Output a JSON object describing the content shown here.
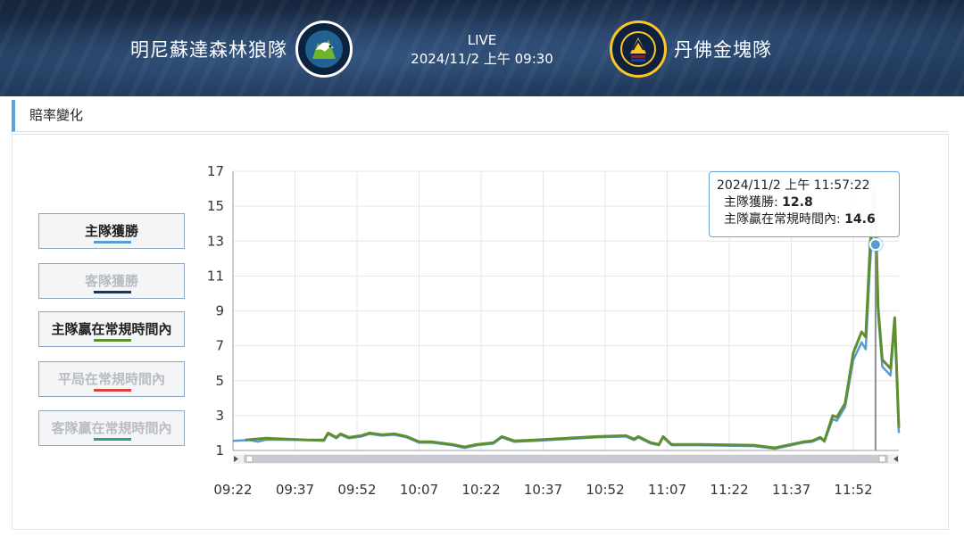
{
  "header": {
    "home_team": "明尼蘇達森林狼隊",
    "away_team": "丹佛金塊隊",
    "status": "LIVE",
    "datetime": "2024/11/2 上午 09:30",
    "home_logo_icon": "timberwolves-logo-icon",
    "away_logo_icon": "nuggets-logo-icon",
    "home_logo_text": "MINNESOTA TIMBERWOLVES",
    "away_logo_text": "DENVER NUGGETS"
  },
  "section": {
    "title": "賠率變化"
  },
  "legend": [
    {
      "label": "主隊獲勝",
      "color": "#5b9bd5",
      "active": true
    },
    {
      "label": "客隊獲勝",
      "color": "#1f3551",
      "active": false
    },
    {
      "label": "主隊贏在常規時間內",
      "color": "#5e8e2e",
      "active": true
    },
    {
      "label": "平局在常規時間內",
      "color": "#e0403a",
      "active": false
    },
    {
      "label": "客隊贏在常規時間內",
      "color": "#2aa08e",
      "active": false
    }
  ],
  "tooltip": {
    "time": "2024/11/2 上午 11:57:22",
    "home_win_label": "主隊獲勝:",
    "home_win_value": "12.8",
    "home_reg_label": "主隊贏在常規時間內:",
    "home_reg_value": "14.6"
  },
  "chart_data": {
    "type": "line",
    "title": "",
    "xlabel": "",
    "ylabel": "",
    "x_ticks": [
      "09:22",
      "09:37",
      "09:52",
      "10:07",
      "10:22",
      "10:37",
      "10:52",
      "11:07",
      "11:22",
      "11:37",
      "11:52"
    ],
    "y_ticks": [
      1,
      3,
      5,
      7,
      9,
      11,
      13,
      15,
      17
    ],
    "x_range": [
      "09:22",
      "12:03"
    ],
    "ylim": [
      1,
      17
    ],
    "grid": true,
    "series": [
      {
        "name": "主隊獲勝",
        "color": "#5b9bd5",
        "points": [
          [
            "09:22",
            1.55
          ],
          [
            "09:26",
            1.6
          ],
          [
            "09:28",
            1.5
          ],
          [
            "09:30",
            1.62
          ],
          [
            "09:40",
            1.6
          ],
          [
            "09:44",
            1.55
          ],
          [
            "09:45",
            1.95
          ],
          [
            "09:47",
            1.7
          ],
          [
            "09:48",
            1.9
          ],
          [
            "09:50",
            1.7
          ],
          [
            "09:53",
            1.8
          ],
          [
            "09:55",
            1.95
          ],
          [
            "09:58",
            1.85
          ],
          [
            "10:01",
            1.9
          ],
          [
            "10:04",
            1.75
          ],
          [
            "10:07",
            1.45
          ],
          [
            "10:10",
            1.45
          ],
          [
            "10:15",
            1.3
          ],
          [
            "10:18",
            1.15
          ],
          [
            "10:21",
            1.3
          ],
          [
            "10:25",
            1.4
          ],
          [
            "10:27",
            1.75
          ],
          [
            "10:30",
            1.5
          ],
          [
            "10:35",
            1.55
          ],
          [
            "10:50",
            1.75
          ],
          [
            "10:57",
            1.8
          ],
          [
            "10:59",
            1.6
          ],
          [
            "11:00",
            1.75
          ],
          [
            "11:03",
            1.4
          ],
          [
            "11:05",
            1.3
          ],
          [
            "11:06",
            1.75
          ],
          [
            "11:08",
            1.3
          ],
          [
            "11:15",
            1.3
          ],
          [
            "11:28",
            1.25
          ],
          [
            "11:33",
            1.1
          ],
          [
            "11:37",
            1.3
          ],
          [
            "11:40",
            1.45
          ],
          [
            "11:42",
            1.5
          ],
          [
            "11:44",
            1.7
          ],
          [
            "11:45",
            1.5
          ],
          [
            "11:47",
            2.8
          ],
          [
            "11:48",
            2.7
          ],
          [
            "11:50",
            3.5
          ],
          [
            "11:52",
            6.2
          ],
          [
            "11:54",
            7.2
          ],
          [
            "11:55",
            6.8
          ],
          [
            "11:56",
            11.5
          ],
          [
            "11:57",
            15.0
          ],
          [
            "11:57:22",
            12.8
          ],
          [
            "11:58",
            8.8
          ],
          [
            "11:59",
            5.8
          ],
          [
            "12:01",
            5.3
          ],
          [
            "12:02",
            8.3
          ],
          [
            "12:03",
            2.0
          ]
        ]
      },
      {
        "name": "主隊贏在常規時間內",
        "color": "#5e8e2e",
        "points": [
          [
            "09:25",
            1.6
          ],
          [
            "09:30",
            1.7
          ],
          [
            "09:40",
            1.6
          ],
          [
            "09:44",
            1.6
          ],
          [
            "09:45",
            2.0
          ],
          [
            "09:47",
            1.75
          ],
          [
            "09:48",
            1.95
          ],
          [
            "09:50",
            1.75
          ],
          [
            "09:53",
            1.85
          ],
          [
            "09:55",
            2.0
          ],
          [
            "09:58",
            1.9
          ],
          [
            "10:01",
            1.95
          ],
          [
            "10:04",
            1.8
          ],
          [
            "10:07",
            1.5
          ],
          [
            "10:10",
            1.5
          ],
          [
            "10:15",
            1.35
          ],
          [
            "10:18",
            1.2
          ],
          [
            "10:21",
            1.35
          ],
          [
            "10:25",
            1.45
          ],
          [
            "10:27",
            1.8
          ],
          [
            "10:30",
            1.55
          ],
          [
            "10:35",
            1.6
          ],
          [
            "10:50",
            1.8
          ],
          [
            "10:57",
            1.85
          ],
          [
            "10:59",
            1.65
          ],
          [
            "11:00",
            1.8
          ],
          [
            "11:03",
            1.45
          ],
          [
            "11:05",
            1.35
          ],
          [
            "11:06",
            1.8
          ],
          [
            "11:08",
            1.35
          ],
          [
            "11:15",
            1.35
          ],
          [
            "11:28",
            1.3
          ],
          [
            "11:33",
            1.15
          ],
          [
            "11:37",
            1.35
          ],
          [
            "11:40",
            1.5
          ],
          [
            "11:42",
            1.55
          ],
          [
            "11:44",
            1.75
          ],
          [
            "11:45",
            1.55
          ],
          [
            "11:47",
            3.0
          ],
          [
            "11:48",
            2.9
          ],
          [
            "11:50",
            3.7
          ],
          [
            "11:52",
            6.6
          ],
          [
            "11:54",
            7.8
          ],
          [
            "11:55",
            7.5
          ],
          [
            "11:56",
            12.5
          ],
          [
            "11:57",
            16.2
          ],
          [
            "11:57:22",
            14.6
          ],
          [
            "11:58",
            9.2
          ],
          [
            "11:59",
            6.2
          ],
          [
            "12:01",
            5.7
          ],
          [
            "12:02",
            8.6
          ],
          [
            "12:03",
            2.3
          ]
        ]
      }
    ],
    "highlight_x": "11:57:22",
    "highlight_point": [
      "11:57:22",
      12.8
    ]
  }
}
